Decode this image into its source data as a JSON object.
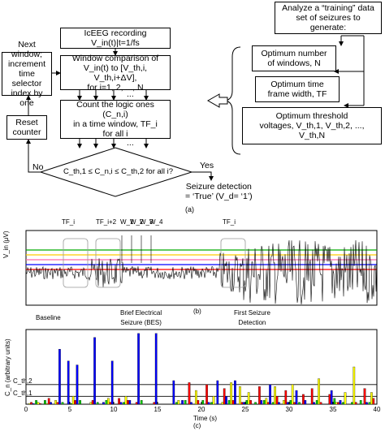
{
  "flow": {
    "box_recording": "IcEEG recording V_in(t)|t=1/fs",
    "box_window_comparison": [
      "Window comparison of",
      "V_in(t) to [V_th,i, V_th,i+ΔV],",
      "for i=1, 2, ..., N"
    ],
    "box_count": [
      "Count the logic ones (C_n,i)",
      "in a time window, TF_i",
      "for all i"
    ],
    "box_next_window": [
      "Next window;",
      "increment",
      "time selector",
      "index by one"
    ],
    "box_reset": [
      "Reset",
      "counter"
    ],
    "diamond": "C_th,1 ≤ C_n,i ≤ C_th,2 for all i?",
    "label_no": "No",
    "label_yes": "Yes",
    "detection": [
      "Seizure detection",
      "= ‘True’ (V_d= ‘1’)"
    ],
    "box_analyze": [
      "Analyze a “training” data",
      "set of seizures to",
      "generate:"
    ],
    "box_opt_windows": [
      "Optimum number",
      "of windows, N"
    ],
    "box_opt_time": [
      "Optimum time",
      "frame width, TF"
    ],
    "box_opt_threshold": [
      "Optimum threshold",
      "voltages, V_th,1, V_th,2, ...,",
      "V_th,N"
    ],
    "ellipsis": "...",
    "panel_a": "(a)"
  },
  "eeg": {
    "ylabel": "V_in (μV)",
    "tf_label_1": "TF_i",
    "tf_label_2": "TF_i+2",
    "tf_label_3": "TF_i",
    "w_labels": [
      "W_1",
      "W_2",
      "W_3",
      "W_4"
    ],
    "annotation_baseline": "Baseline",
    "annotation_bes": [
      "Brief Electrical",
      "Seizure (BES)"
    ],
    "annotation_first": [
      "First Seizure",
      "Detection"
    ],
    "panel_b": "(b)",
    "threshold_colors": [
      "#00aa00",
      "#ffcc00",
      "#ff66aa",
      "#0000ff",
      "#ff0000"
    ]
  },
  "chart_data": {
    "type": "bar",
    "xlabel": "Time (s)",
    "ylabel": "C_n (arbitrary units)",
    "xlim": [
      0,
      40
    ],
    "xticks": [
      "0",
      "5",
      "10",
      "15",
      "20",
      "25",
      "30",
      "35",
      "40"
    ],
    "threshold_labels": [
      "C_th,2",
      "C_th,1"
    ],
    "threshold_values": [
      0.5,
      0.2
    ],
    "ylim": [
      0,
      1.9
    ],
    "series_colors": [
      "#00cc00",
      "#ffff00",
      "#ff0000",
      "#0000ff"
    ],
    "groups": [
      {
        "t": 0.5,
        "values": [
          0.0,
          0.02,
          0.05,
          0.02
        ]
      },
      {
        "t": 1.5,
        "values": [
          0.1,
          0.05,
          0.02,
          0.0
        ]
      },
      {
        "t": 2.5,
        "values": [
          0.1,
          0.02,
          0.15,
          0.05
        ]
      },
      {
        "t": 3.5,
        "values": [
          0.0,
          0.1,
          0.05,
          1.4
        ]
      },
      {
        "t": 4.5,
        "values": [
          0.05,
          0.0,
          0.0,
          1.1
        ]
      },
      {
        "t": 5.5,
        "values": [
          0.02,
          0.2,
          0.1,
          1.0
        ]
      },
      {
        "t": 6.5,
        "values": [
          0.1,
          0.0,
          0.0,
          0.0
        ]
      },
      {
        "t": 7.5,
        "values": [
          0.0,
          0.05,
          0.1,
          1.7
        ]
      },
      {
        "t": 8.5,
        "values": [
          0.05,
          0.0,
          0.0,
          0.05
        ]
      },
      {
        "t": 9.5,
        "values": [
          0.1,
          0.15,
          0.05,
          1.1
        ]
      },
      {
        "t": 10.5,
        "values": [
          0.0,
          0.0,
          0.15,
          0.05
        ]
      },
      {
        "t": 11.5,
        "values": [
          0.05,
          0.2,
          0.1,
          0.1
        ]
      },
      {
        "t": 12.5,
        "values": [
          0.0,
          0.0,
          0.05,
          1.8
        ]
      },
      {
        "t": 13.5,
        "values": [
          0.1,
          0.0,
          0.0,
          0.0
        ]
      },
      {
        "t": 14.5,
        "values": [
          0.0,
          0.0,
          0.05,
          1.8
        ]
      },
      {
        "t": 15.5,
        "values": [
          0.0,
          0.0,
          0.0,
          0.0
        ]
      },
      {
        "t": 16.5,
        "values": [
          0.0,
          0.0,
          0.0,
          0.6
        ]
      },
      {
        "t": 17.5,
        "values": [
          0.05,
          0.1,
          0.0,
          0.1
        ]
      },
      {
        "t": 18.5,
        "values": [
          0.1,
          0.0,
          0.55,
          0.05
        ]
      },
      {
        "t": 19.5,
        "values": [
          0.0,
          0.35,
          0.1,
          0.0
        ]
      },
      {
        "t": 20.5,
        "values": [
          0.1,
          0.0,
          0.5,
          0.05
        ]
      },
      {
        "t": 21.5,
        "values": [
          0.05,
          0.2,
          0.0,
          0.6
        ]
      },
      {
        "t": 22.5,
        "values": [
          0.0,
          0.05,
          0.4,
          0.2
        ]
      },
      {
        "t": 23.5,
        "values": [
          0.1,
          0.55,
          0.1,
          0.6
        ]
      },
      {
        "t": 24.5,
        "values": [
          0.0,
          0.45,
          0.05,
          0.05
        ]
      },
      {
        "t": 25.5,
        "values": [
          0.1,
          0.3,
          0.1,
          0.0
        ]
      },
      {
        "t": 26.5,
        "values": [
          0.05,
          0.0,
          0.45,
          0.1
        ]
      },
      {
        "t": 27.5,
        "values": [
          0.1,
          0.15,
          0.05,
          0.5
        ]
      },
      {
        "t": 28.5,
        "values": [
          0.05,
          0.45,
          0.2,
          0.05
        ]
      },
      {
        "t": 29.5,
        "values": [
          0.0,
          0.1,
          0.35,
          0.05
        ]
      },
      {
        "t": 30.5,
        "values": [
          0.1,
          0.5,
          0.05,
          0.35
        ]
      },
      {
        "t": 31.5,
        "values": [
          0.05,
          0.0,
          0.25,
          0.1
        ]
      },
      {
        "t": 32.5,
        "values": [
          0.0,
          0.0,
          0.4,
          0.05
        ]
      },
      {
        "t": 33.5,
        "values": [
          0.1,
          0.65,
          0.05,
          0.0
        ]
      },
      {
        "t": 34.5,
        "values": [
          0.0,
          0.0,
          0.25,
          0.35
        ]
      },
      {
        "t": 35.5,
        "values": [
          0.15,
          0.05,
          0.05,
          0.1
        ]
      },
      {
        "t": 36.5,
        "values": [
          0.05,
          0.3,
          0.0,
          0.0
        ]
      },
      {
        "t": 37.5,
        "values": [
          0.05,
          0.95,
          0.05,
          0.0
        ]
      },
      {
        "t": 38.5,
        "values": [
          0.1,
          0.0,
          0.4,
          0.05
        ]
      },
      {
        "t": 39.5,
        "values": [
          0.05,
          0.3,
          0.15,
          0.0
        ]
      }
    ],
    "panel_c": "(c)"
  }
}
